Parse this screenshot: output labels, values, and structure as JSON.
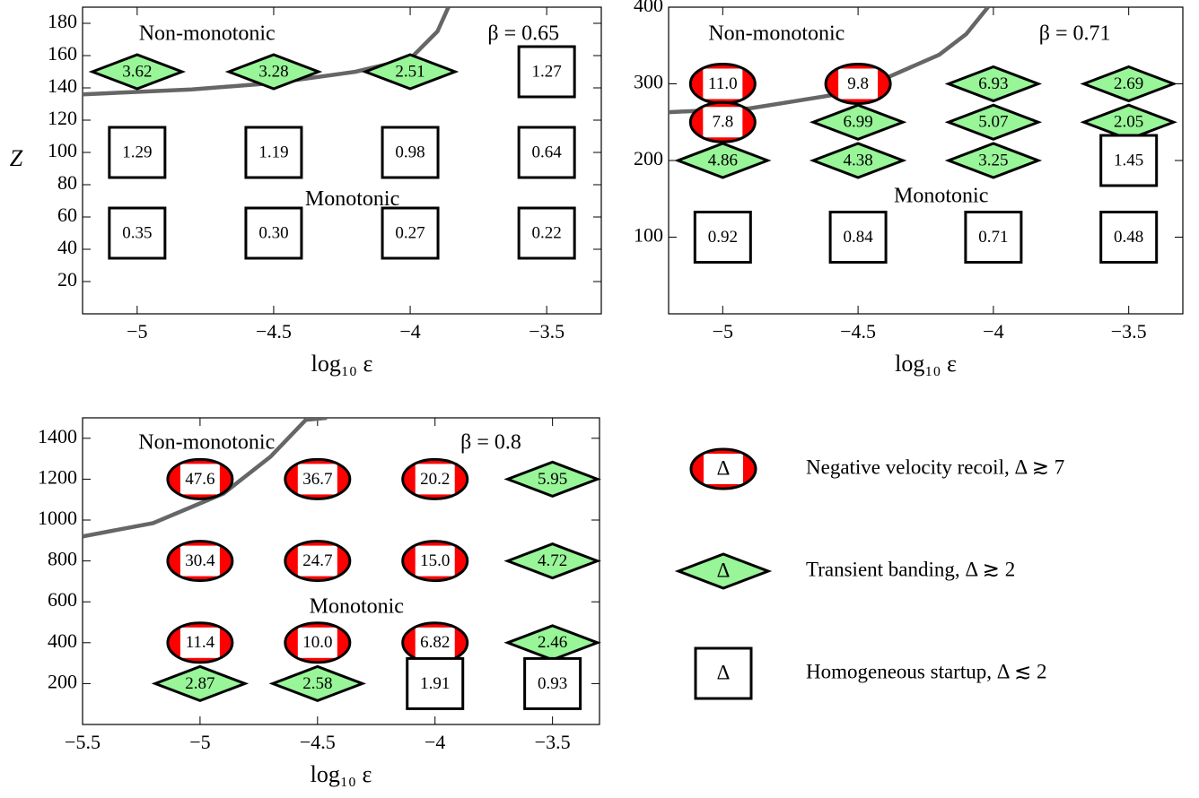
{
  "chart_data": [
    {
      "type": "scatter",
      "xlabel": "log₁₀ ε",
      "ylabel": "Z",
      "annotations": [
        "Non-monotonic",
        "Monotonic",
        "β = 0.65"
      ],
      "xlim": [
        -5.2,
        -3.3
      ],
      "ylim": [
        0,
        190
      ],
      "xticks": [
        {
          "value": -5,
          "label": "−5"
        },
        {
          "value": -4.5,
          "label": "−4.5"
        },
        {
          "value": -4,
          "label": "−4"
        },
        {
          "value": -3.5,
          "label": "−3.5"
        }
      ],
      "yticks": [
        20,
        40,
        60,
        80,
        100,
        120,
        140,
        160,
        180
      ],
      "boundary": {
        "color": "#666666",
        "x": [
          -5.2,
          -4.8,
          -4.5,
          -4.2,
          -4,
          -3.9,
          -3.86
        ],
        "y": [
          136,
          139,
          143,
          150,
          158,
          175,
          190
        ]
      },
      "series": [
        {
          "marker": "diamond",
          "color": "#98f598",
          "x": [
            -5,
            -4.5,
            -4
          ],
          "y": [
            150,
            150,
            150
          ],
          "values": [
            3.62,
            3.28,
            2.51
          ],
          "value_labels": [
            "3.62",
            "3.28",
            "2.51"
          ]
        },
        {
          "marker": "square",
          "color": "#ffffff",
          "x": [
            -3.5,
            -5,
            -4.5,
            -4,
            -3.5,
            -5,
            -4.5,
            -4,
            -3.5
          ],
          "y": [
            150,
            100,
            100,
            100,
            100,
            50,
            50,
            50,
            50
          ],
          "values": [
            1.27,
            1.29,
            1.19,
            0.98,
            0.64,
            0.35,
            0.3,
            0.27,
            0.22
          ],
          "value_labels": [
            "1.27",
            "1.29",
            "1.19",
            "0.98",
            "0.64",
            "0.35",
            "0.30",
            "0.27",
            "0.22"
          ]
        }
      ]
    },
    {
      "type": "scatter",
      "xlabel": "log₁₀ ε",
      "annotations": [
        "Non-monotonic",
        "Monotonic",
        "β = 0.71"
      ],
      "xlim": [
        -5.2,
        -3.3
      ],
      "ylim": [
        0,
        400
      ],
      "xticks": [
        {
          "value": -5,
          "label": "−5"
        },
        {
          "value": -4.5,
          "label": "−4.5"
        },
        {
          "value": -4,
          "label": "−4"
        },
        {
          "value": -3.5,
          "label": "−3.5"
        }
      ],
      "yticks": [
        100,
        200,
        300,
        400
      ],
      "boundary": {
        "color": "#666666",
        "x": [
          -5.2,
          -4.9,
          -4.6,
          -4.4,
          -4.2,
          -4.1,
          -4.02
        ],
        "y": [
          263,
          268,
          285,
          307,
          338,
          365,
          400
        ]
      },
      "series": [
        {
          "marker": "ellipse",
          "color": "#ff0000",
          "x": [
            -5,
            -4.5,
            -5
          ],
          "y": [
            300,
            300,
            250
          ],
          "values": [
            11,
            9.8,
            7.8
          ],
          "value_labels": [
            "11.0",
            "9.8",
            "7.8"
          ]
        },
        {
          "marker": "diamond",
          "color": "#98f598",
          "x": [
            -4,
            -3.5,
            -4.5,
            -4,
            -3.5,
            -5,
            -4.5,
            -4
          ],
          "y": [
            300,
            300,
            250,
            250,
            250,
            200,
            200,
            200
          ],
          "values": [
            6.93,
            2.69,
            6.99,
            5.07,
            2.05,
            4.86,
            4.38,
            3.25
          ],
          "value_labels": [
            "6.93",
            "2.69",
            "6.99",
            "5.07",
            "2.05",
            "4.86",
            "4.38",
            "3.25"
          ]
        },
        {
          "marker": "square",
          "color": "#ffffff",
          "x": [
            -3.5,
            -5,
            -4.5,
            -4,
            -3.5
          ],
          "y": [
            200,
            100,
            100,
            100,
            100
          ],
          "values": [
            1.45,
            0.92,
            0.84,
            0.71,
            0.48
          ],
          "value_labels": [
            "1.45",
            "0.92",
            "0.84",
            "0.71",
            "0.48"
          ]
        }
      ]
    },
    {
      "type": "scatter",
      "xlabel": "log₁₀ ε",
      "annotations": [
        "Non-monotonic",
        "Monotonic",
        "β = 0.8"
      ],
      "xlim": [
        -5.5,
        -3.3
      ],
      "ylim": [
        0,
        1500
      ],
      "xticks": [
        {
          "value": -5.5,
          "label": "−5.5"
        },
        {
          "value": -5,
          "label": "−5"
        },
        {
          "value": -4.5,
          "label": "−4.5"
        },
        {
          "value": -4,
          "label": "−4"
        },
        {
          "value": -3.5,
          "label": "−3.5"
        }
      ],
      "yticks": [
        200,
        400,
        600,
        800,
        1000,
        1200,
        1400
      ],
      "boundary": {
        "color": "#666666",
        "x": [
          -5.5,
          -5.2,
          -4.9,
          -4.7,
          -4.55,
          -4.46
        ],
        "y": [
          920,
          985,
          1130,
          1310,
          1490,
          1500
        ]
      },
      "series": [
        {
          "marker": "ellipse",
          "color": "#ff0000",
          "x": [
            -5,
            -4.5,
            -4,
            -5,
            -4.5,
            -4,
            -5,
            -4.5,
            -4
          ],
          "y": [
            1200,
            1200,
            1200,
            800,
            800,
            800,
            400,
            400,
            400
          ],
          "values": [
            47.6,
            36.7,
            20.2,
            30.4,
            24.7,
            15,
            11.4,
            10,
            6.82
          ],
          "value_labels": [
            "47.6",
            "36.7",
            "20.2",
            "30.4",
            "24.7",
            "15.0",
            "11.4",
            "10.0",
            "6.82"
          ]
        },
        {
          "marker": "diamond",
          "color": "#98f598",
          "x": [
            -3.5,
            -3.5,
            -3.5,
            -5,
            -4.5
          ],
          "y": [
            1200,
            800,
            400,
            200,
            200
          ],
          "values": [
            5.95,
            4.72,
            2.46,
            2.87,
            2.58
          ],
          "value_labels": [
            "5.95",
            "4.72",
            "2.46",
            "2.87",
            "2.58"
          ]
        },
        {
          "marker": "square",
          "color": "#ffffff",
          "x": [
            -4,
            -3.5
          ],
          "y": [
            200,
            200
          ],
          "values": [
            1.91,
            0.93
          ],
          "value_labels": [
            "1.91",
            "0.93"
          ]
        }
      ]
    }
  ],
  "legend": {
    "symbol": "Δ",
    "items": [
      {
        "marker": "ellipse",
        "color": "#ff0000",
        "name": "Negative velocity recoil, Δ ≳ 7"
      },
      {
        "marker": "diamond",
        "color": "#98f598",
        "name": "Transient banding, Δ ≳ 2"
      },
      {
        "marker": "square",
        "color": "#ffffff",
        "name": "Homogeneous startup, Δ ≲ 2"
      }
    ]
  }
}
